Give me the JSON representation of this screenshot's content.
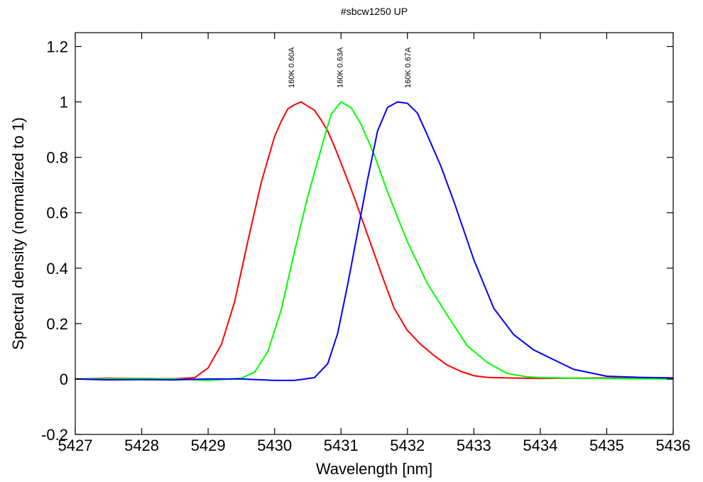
{
  "chart_data": {
    "type": "line",
    "title": "#sbcw1250 UP",
    "xlabel": "Wavelength [nm]",
    "ylabel": "Spectral density (normalized to 1)",
    "xlim": [
      5427,
      5436
    ],
    "ylim": [
      -0.2,
      1.25
    ],
    "x_ticks": [
      5427,
      5428,
      5429,
      5430,
      5431,
      5432,
      5433,
      5434,
      5435,
      5436
    ],
    "x_tick_labels": [
      "5427",
      "5428",
      "5429",
      "5430",
      "5431",
      "5432",
      "5433",
      "5434",
      "5435",
      "5436"
    ],
    "y_ticks": [
      -0.2,
      0,
      0.2,
      0.4,
      0.6,
      0.8,
      1,
      1.2
    ],
    "y_tick_labels": [
      "-0.2",
      "0",
      "0.2",
      "0.4",
      "0.6",
      "0.8",
      "1",
      "1.2"
    ],
    "grid": false,
    "series": [
      {
        "color": "#ff0000",
        "x": [
          5427.0,
          5427.5,
          5428.0,
          5428.5,
          5428.8,
          5429.0,
          5429.2,
          5429.4,
          5429.6,
          5429.8,
          5430.0,
          5430.1,
          5430.2,
          5430.3,
          5430.4,
          5430.5,
          5430.6,
          5430.7,
          5430.8,
          5430.9,
          5431.0,
          5431.2,
          5431.4,
          5431.6,
          5431.8,
          5432.0,
          5432.2,
          5432.4,
          5432.6,
          5432.8,
          5433.0,
          5433.2,
          5433.5,
          5434.0,
          5435.0,
          5436.0
        ],
        "values": [
          0.0,
          0.003,
          0.002,
          0.001,
          0.005,
          0.04,
          0.125,
          0.28,
          0.5,
          0.71,
          0.875,
          0.93,
          0.975,
          0.99,
          1.0,
          0.985,
          0.97,
          0.935,
          0.895,
          0.84,
          0.78,
          0.655,
          0.52,
          0.385,
          0.255,
          0.175,
          0.125,
          0.085,
          0.05,
          0.028,
          0.012,
          0.006,
          0.004,
          0.002,
          0.004,
          0.0
        ]
      },
      {
        "color": "#00ff00",
        "x": [
          5427.0,
          5428.0,
          5428.5,
          5429.0,
          5429.5,
          5429.7,
          5429.9,
          5430.1,
          5430.3,
          5430.5,
          5430.7,
          5430.85,
          5431.0,
          5431.15,
          5431.3,
          5431.5,
          5431.7,
          5432.0,
          5432.3,
          5432.6,
          5432.9,
          5433.2,
          5433.5,
          5433.8,
          5434.0,
          5434.5,
          5435.0,
          5436.0
        ],
        "values": [
          0.0,
          0.002,
          0.0,
          -0.005,
          0.003,
          0.025,
          0.1,
          0.25,
          0.46,
          0.66,
          0.83,
          0.955,
          1.0,
          0.98,
          0.92,
          0.81,
          0.675,
          0.495,
          0.345,
          0.23,
          0.12,
          0.06,
          0.02,
          0.008,
          0.005,
          0.003,
          0.002,
          0.0
        ]
      },
      {
        "color": "#0000ff",
        "x": [
          5427.0,
          5427.5,
          5428.0,
          5428.5,
          5429.0,
          5429.5,
          5430.0,
          5430.3,
          5430.6,
          5430.8,
          5430.95,
          5431.1,
          5431.25,
          5431.4,
          5431.55,
          5431.7,
          5431.85,
          5432.0,
          5432.15,
          5432.3,
          5432.5,
          5432.7,
          5433.0,
          5433.3,
          5433.6,
          5433.9,
          5434.2,
          5434.5,
          5434.8,
          5435.0,
          5435.5,
          5436.0
        ],
        "values": [
          0.0,
          -0.003,
          -0.002,
          -0.003,
          0.0,
          0.0,
          -0.005,
          -0.005,
          0.005,
          0.055,
          0.165,
          0.34,
          0.53,
          0.72,
          0.895,
          0.98,
          1.0,
          0.995,
          0.96,
          0.88,
          0.77,
          0.64,
          0.43,
          0.255,
          0.16,
          0.105,
          0.07,
          0.035,
          0.02,
          0.01,
          0.006,
          0.004
        ]
      }
    ],
    "annotations": [
      {
        "text": "160K 0.60A",
        "x": 5430.25
      },
      {
        "text": "160K 0.63A",
        "x": 5430.98
      },
      {
        "text": "160K 0.67A",
        "x": 5432.0
      }
    ]
  }
}
